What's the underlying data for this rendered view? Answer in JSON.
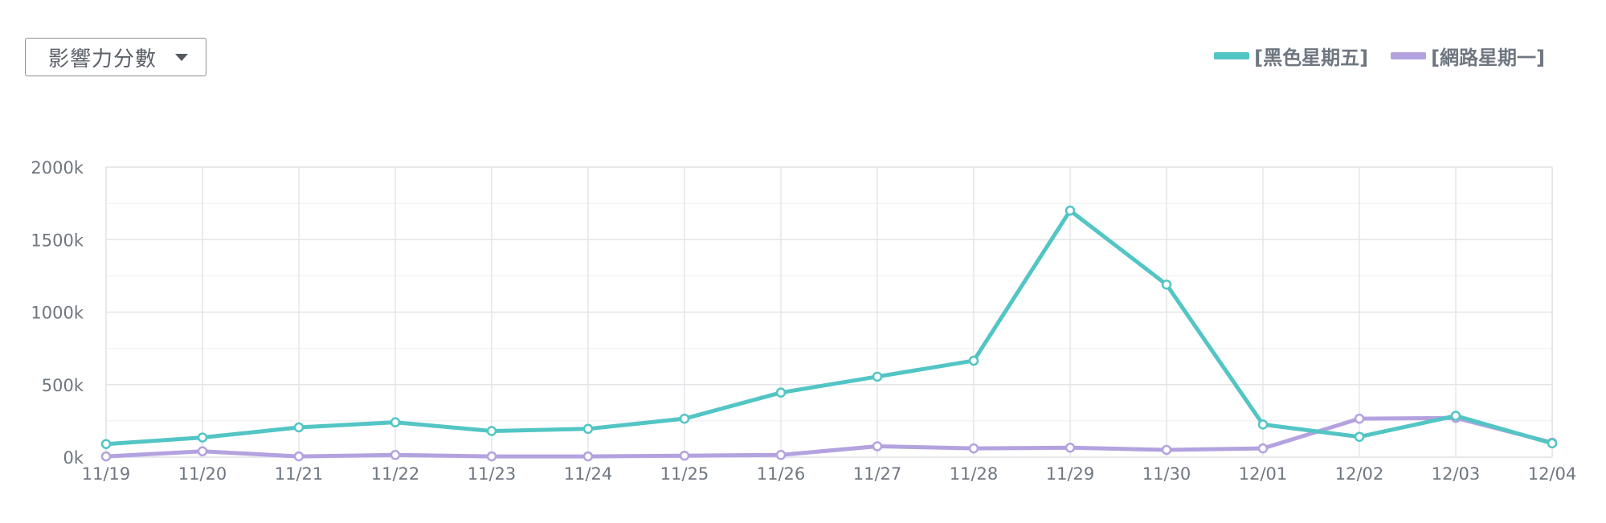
{
  "dropdown": {
    "label": "影響力分數"
  },
  "legend": [
    {
      "label": "[黑色星期五]",
      "color": "#52c5c4"
    },
    {
      "label": "[網路星期一]",
      "color": "#b3a2df"
    }
  ],
  "chart_data": {
    "type": "line",
    "x": [
      "11/19",
      "11/20",
      "11/21",
      "11/22",
      "11/23",
      "11/24",
      "11/25",
      "11/26",
      "11/27",
      "11/28",
      "11/29",
      "11/30",
      "12/01",
      "12/02",
      "12/03",
      "12/04"
    ],
    "ylim": [
      0,
      2000
    ],
    "yticks": [
      "0k",
      "500k",
      "1000k",
      "1500k",
      "2000k"
    ],
    "ytick_values": [
      0,
      500,
      1000,
      1500,
      2000
    ],
    "grid": true,
    "legend_position": "top-right",
    "series": [
      {
        "name": "[黑色星期五]",
        "color": "#52c5c4",
        "values": [
          90,
          135,
          205,
          240,
          180,
          195,
          265,
          445,
          555,
          665,
          1700,
          1190,
          225,
          140,
          285,
          95
        ]
      },
      {
        "name": "[網路星期一]",
        "color": "#b3a2df",
        "values": [
          5,
          40,
          5,
          15,
          5,
          5,
          10,
          15,
          75,
          60,
          65,
          50,
          60,
          265,
          270,
          100
        ]
      }
    ]
  }
}
